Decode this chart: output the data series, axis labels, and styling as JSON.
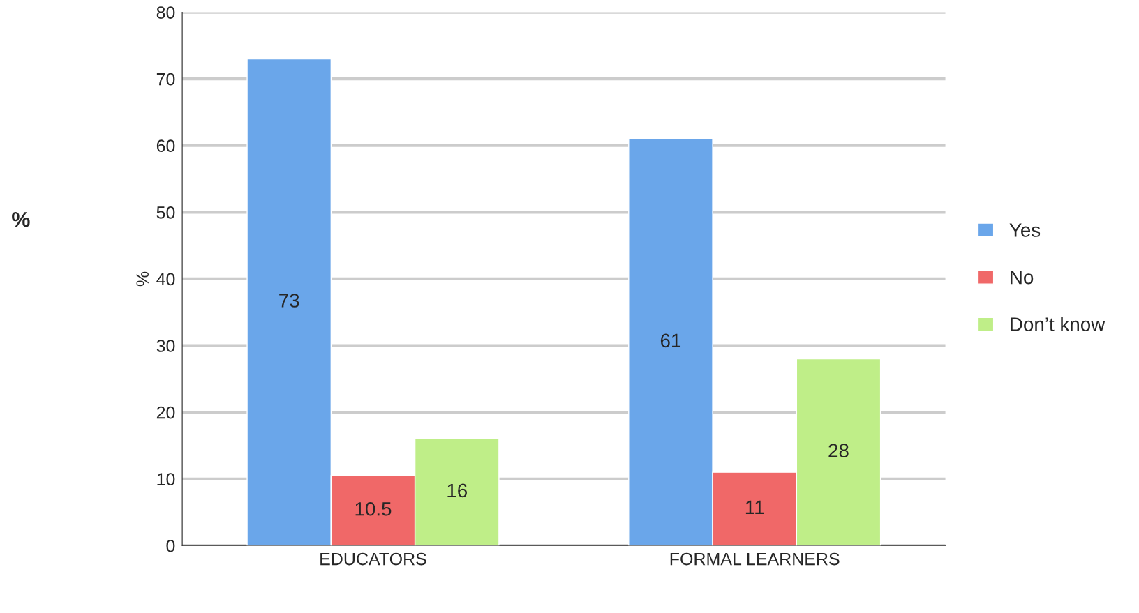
{
  "chart_data": {
    "type": "bar",
    "ylabel": "%",
    "annotations": [
      "%"
    ],
    "categories": [
      "EDUCATORS",
      "FORMAL LEARNERS"
    ],
    "series": [
      {
        "name": "Yes",
        "color": "#6aa6ea",
        "values": [
          73,
          61
        ]
      },
      {
        "name": "No",
        "color": "#f06868",
        "values": [
          10.5,
          11
        ]
      },
      {
        "name": "Don’t know",
        "color": "#bfee88",
        "values": [
          16,
          28
        ]
      }
    ],
    "ylim": [
      0,
      80
    ],
    "yticks": [
      0,
      10,
      20,
      30,
      40,
      50,
      60,
      70,
      80
    ],
    "grid": "y",
    "legend": "right",
    "data_labels": true
  }
}
